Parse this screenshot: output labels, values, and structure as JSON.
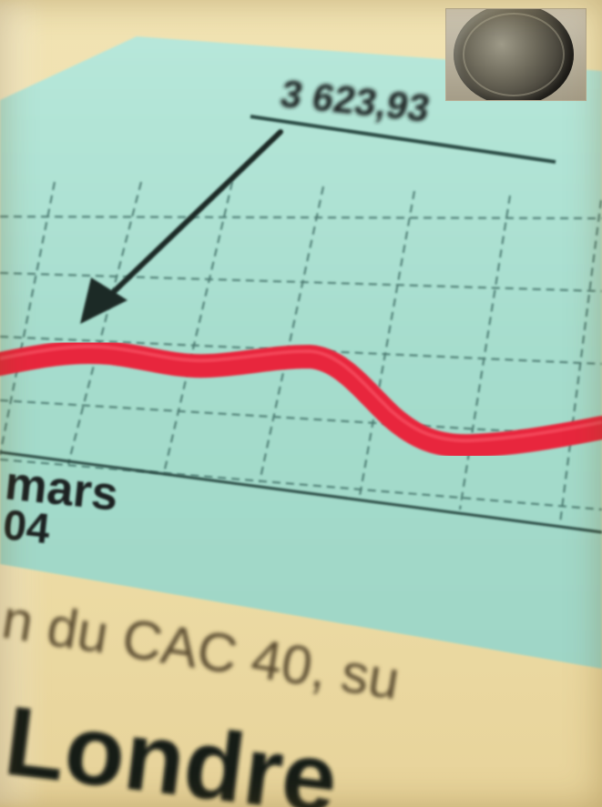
{
  "image": {
    "description_label": "Photograph of a printed stock chart with a falling red line",
    "colors": {
      "paper": "#efdfa9",
      "chart_panel": "#a9e0d0",
      "grid": "#2f5a52",
      "line": "#e8283c",
      "arrow": "#1b2b28",
      "text": "#1b2421"
    }
  },
  "chart": {
    "top_value": "3 623,93",
    "date_month": "mars",
    "date_year": "04"
  },
  "caption": {
    "line1": "n du CAC 40, su",
    "line2": "Londre"
  },
  "inset": {
    "icon": "coin-icon"
  }
}
